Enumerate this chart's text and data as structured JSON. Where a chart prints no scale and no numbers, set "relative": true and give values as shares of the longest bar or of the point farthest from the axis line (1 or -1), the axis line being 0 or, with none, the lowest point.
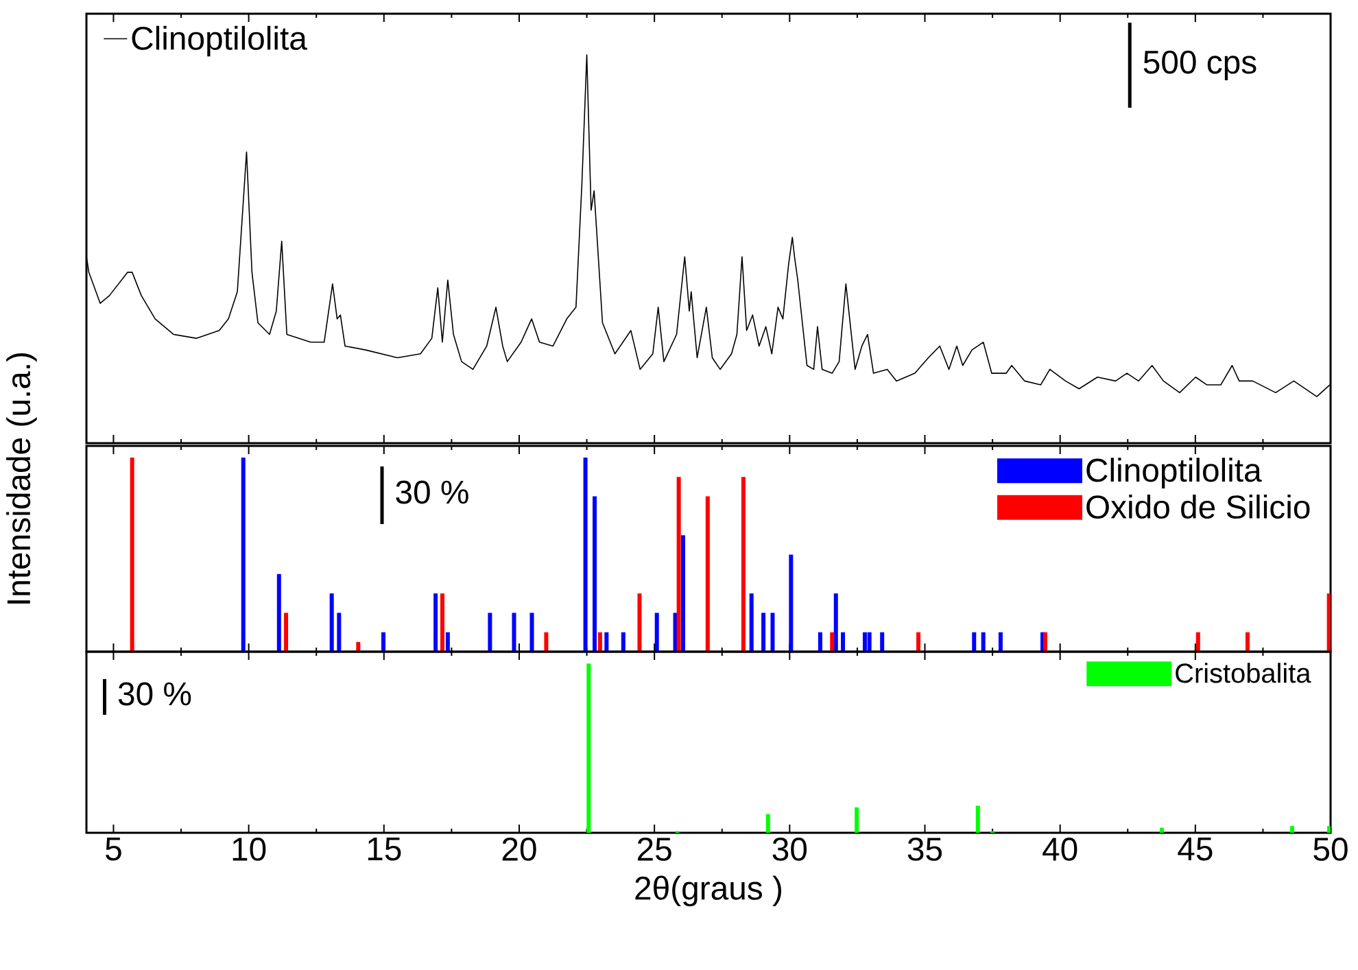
{
  "chart_data": [
    {
      "type": "line",
      "relative": true,
      "xlim": [
        4,
        50
      ],
      "xticks": [
        5,
        10,
        15,
        20,
        25,
        30,
        35,
        40,
        45,
        50
      ],
      "tick_labels": false,
      "legend": "top left",
      "annotations": [
        "500 cps"
      ],
      "x": [
        4.0,
        4.09,
        4.51,
        4.85,
        5.52,
        5.69,
        6.03,
        6.54,
        7.22,
        8.06,
        8.91,
        9.25,
        9.58,
        9.92,
        10.12,
        10.34,
        10.77,
        11.02,
        11.22,
        11.41,
        12.29,
        12.79,
        13.1,
        13.27,
        13.39,
        13.56,
        14.32,
        15.5,
        16.35,
        16.77,
        16.99,
        17.16,
        17.36,
        17.57,
        17.87,
        18.29,
        18.8,
        19.14,
        19.39,
        19.56,
        20.07,
        20.46,
        20.75,
        21.25,
        21.76,
        22.1,
        22.32,
        22.5,
        22.66,
        22.77,
        23.08,
        23.54,
        24.13,
        24.47,
        24.94,
        25.14,
        25.35,
        25.82,
        26.12,
        26.29,
        26.36,
        26.58,
        26.92,
        27.14,
        27.43,
        27.85,
        28.05,
        28.24,
        28.41,
        28.63,
        28.87,
        29.12,
        29.34,
        29.57,
        29.75,
        29.96,
        30.1,
        30.18,
        30.3,
        30.64,
        30.89,
        31.03,
        31.2,
        31.57,
        31.83,
        32.08,
        32.42,
        32.67,
        32.88,
        33.1,
        33.61,
        33.95,
        34.63,
        35.13,
        35.55,
        35.89,
        36.18,
        36.4,
        36.74,
        37.16,
        37.47,
        38.01,
        38.21,
        38.69,
        39.28,
        39.62,
        40.2,
        40.7,
        41.38,
        42.05,
        42.47,
        42.9,
        43.4,
        43.82,
        44.42,
        45.01,
        45.43,
        45.94,
        46.36,
        46.62,
        47.12,
        47.97,
        48.64,
        49.49,
        49.97
      ],
      "series": [
        {
          "name": "Clinoptilolita",
          "color": "#000000",
          "values": [
            0.48,
            0.44,
            0.36,
            0.38,
            0.44,
            0.44,
            0.38,
            0.32,
            0.28,
            0.27,
            0.29,
            0.32,
            0.39,
            0.75,
            0.44,
            0.31,
            0.28,
            0.34,
            0.52,
            0.28,
            0.26,
            0.26,
            0.41,
            0.32,
            0.33,
            0.25,
            0.24,
            0.22,
            0.23,
            0.27,
            0.4,
            0.26,
            0.42,
            0.28,
            0.21,
            0.19,
            0.25,
            0.35,
            0.25,
            0.21,
            0.26,
            0.32,
            0.26,
            0.25,
            0.32,
            0.35,
            0.67,
            1.0,
            0.6,
            0.65,
            0.31,
            0.23,
            0.29,
            0.19,
            0.23,
            0.35,
            0.21,
            0.28,
            0.48,
            0.34,
            0.39,
            0.22,
            0.35,
            0.22,
            0.19,
            0.23,
            0.28,
            0.48,
            0.29,
            0.33,
            0.25,
            0.3,
            0.23,
            0.35,
            0.32,
            0.46,
            0.53,
            0.48,
            0.42,
            0.2,
            0.19,
            0.3,
            0.19,
            0.18,
            0.21,
            0.41,
            0.19,
            0.25,
            0.28,
            0.18,
            0.19,
            0.16,
            0.18,
            0.22,
            0.25,
            0.19,
            0.25,
            0.2,
            0.24,
            0.26,
            0.18,
            0.18,
            0.2,
            0.16,
            0.15,
            0.19,
            0.16,
            0.14,
            0.17,
            0.16,
            0.18,
            0.16,
            0.2,
            0.16,
            0.13,
            0.17,
            0.15,
            0.15,
            0.2,
            0.16,
            0.16,
            0.13,
            0.16,
            0.12,
            0.15
          ]
        }
      ]
    },
    {
      "type": "bar",
      "relative": true,
      "xlim": [
        4,
        50
      ],
      "xticks": [
        5,
        10,
        15,
        20,
        25,
        30,
        35,
        40,
        45,
        50
      ],
      "tick_labels": false,
      "legend": "top right",
      "ylabel": "Intensidade (u.a.)",
      "annotations": [
        "30 %"
      ],
      "series": [
        {
          "name": "Clinoptilolita",
          "color": "#0000ff",
          "x": [
            9.8,
            11.12,
            13.07,
            13.34,
            14.98,
            16.91,
            17.36,
            18.92,
            19.81,
            20.47,
            22.45,
            22.79,
            23.23,
            23.85,
            25.09,
            25.77,
            26.06,
            28.59,
            29.03,
            29.37,
            30.05,
            31.13,
            31.71,
            31.97,
            32.78,
            32.95,
            33.42,
            36.82,
            37.16,
            37.8,
            39.35
          ],
          "values": [
            1,
            0.4,
            0.3,
            0.2,
            0.1,
            0.3,
            0.1,
            0.2,
            0.2,
            0.2,
            1,
            0.8,
            0.1,
            0.1,
            0.2,
            0.2,
            0.6,
            0.3,
            0.2,
            0.2,
            0.5,
            0.1,
            0.3,
            0.1,
            0.1,
            0.1,
            0.1,
            0.1,
            0.1,
            0.1,
            0.1
          ]
        },
        {
          "name": "Oxido de Silicio",
          "color": "#ff0000",
          "x": [
            5.69,
            11.38,
            14.05,
            17.16,
            21.0,
            22.99,
            24.45,
            25.9,
            26.97,
            28.29,
            31.57,
            34.76,
            39.45,
            45.1,
            46.93,
            49.94
          ],
          "values": [
            1,
            0.2,
            0.05,
            0.3,
            0.1,
            0.1,
            0.3,
            0.9,
            0.8,
            0.9,
            0.1,
            0.1,
            0.1,
            0.1,
            0.1,
            0.3
          ]
        }
      ]
    },
    {
      "type": "bar",
      "relative": true,
      "xlim": [
        4,
        50
      ],
      "xticks": [
        5,
        10,
        15,
        20,
        25,
        30,
        35,
        40,
        45,
        50
      ],
      "tick_labels": "x",
      "legend": "top right",
      "xlabel": "2θ(graus )",
      "annotations": [
        "30 %"
      ],
      "series": [
        {
          "name": "Cristobalita",
          "color": "#00ff00",
          "x": [
            22.57,
            25.85,
            29.2,
            32.48,
            36.96,
            37.5,
            43.76,
            48.58,
            49.95
          ],
          "values": [
            1,
            0.01,
            0.11,
            0.15,
            0.16,
            0.01,
            0.03,
            0.04,
            0.04
          ]
        }
      ]
    }
  ]
}
